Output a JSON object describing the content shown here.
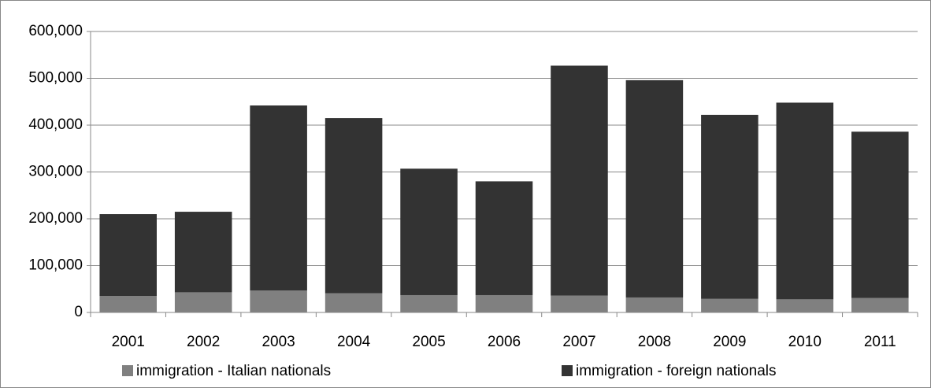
{
  "chart_data": {
    "type": "stacked-bar",
    "categories": [
      "2001",
      "2002",
      "2003",
      "2004",
      "2005",
      "2006",
      "2007",
      "2008",
      "2009",
      "2010",
      "2011"
    ],
    "series": [
      {
        "name": "immigration - Italian nationals",
        "color": "#808080",
        "values": [
          35000,
          43000,
          47000,
          41000,
          37000,
          37000,
          36000,
          32000,
          29000,
          28000,
          31000
        ]
      },
      {
        "name": "immigration - foreign nationals",
        "color": "#333333",
        "values": [
          175000,
          172000,
          395000,
          374000,
          270000,
          243000,
          491000,
          464000,
          393000,
          420000,
          355000
        ]
      }
    ],
    "ylim": [
      0,
      600000
    ],
    "yticks": [
      0,
      {
        "value": 100000,
        "label": "100,000"
      },
      {
        "value": 200000,
        "label": "200,000"
      },
      {
        "value": 300000,
        "label": "300,000"
      },
      {
        "value": 400000,
        "label": "400,000"
      },
      {
        "value": 500000,
        "label": "500,000"
      },
      {
        "value": 600000,
        "label": "600,000"
      }
    ],
    "grid": true
  }
}
